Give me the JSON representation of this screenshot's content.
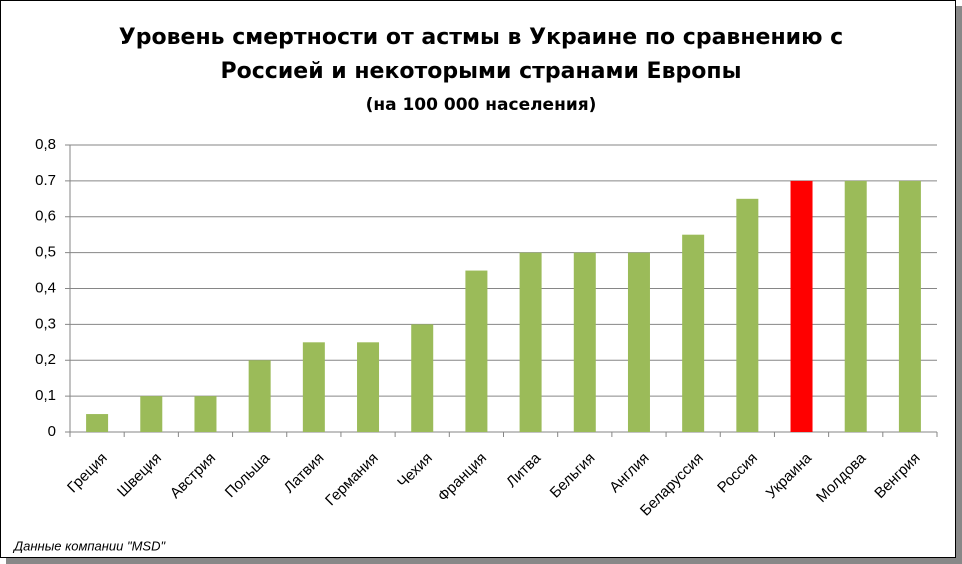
{
  "chart_data": {
    "type": "bar",
    "title": [
      "Уровень смертности от астмы в Украине по сравнению с",
      "Россией и некоторыми странами Европы"
    ],
    "subtitle": "(на 100 000 населения)",
    "categories": [
      "Греция",
      "Швеция",
      "Австрия",
      "Польша",
      "Латвия",
      "Германия",
      "Чехия",
      "Франция",
      "Литва",
      "Бельгия",
      "Англия",
      "Беларуссия",
      "Россия",
      "Украина",
      "Молдова",
      "Венгрия"
    ],
    "values": [
      0.05,
      0.1,
      0.1,
      0.2,
      0.25,
      0.25,
      0.3,
      0.45,
      0.5,
      0.5,
      0.5,
      0.55,
      0.65,
      0.7,
      0.7,
      0.7
    ],
    "colors": [
      "#9bbb59",
      "#9bbb59",
      "#9bbb59",
      "#9bbb59",
      "#9bbb59",
      "#9bbb59",
      "#9bbb59",
      "#9bbb59",
      "#9bbb59",
      "#9bbb59",
      "#9bbb59",
      "#9bbb59",
      "#9bbb59",
      "#ff0000",
      "#9bbb59",
      "#9bbb59"
    ],
    "ylim": [
      0,
      0.8
    ],
    "yticks": [
      0,
      {
        "value": 0.1,
        "label": "0,1"
      },
      {
        "value": 0.2,
        "label": "0,2"
      },
      {
        "value": 0.3,
        "label": "0,3"
      },
      {
        "value": 0.4,
        "label": "0,4"
      },
      {
        "value": 0.5,
        "label": "0,5"
      },
      {
        "value": 0.6,
        "label": "0,6"
      },
      0.7,
      {
        "value": 0.8,
        "label": "0,8"
      }
    ],
    "grid": true,
    "source": "Данные компании \"MSD\""
  }
}
